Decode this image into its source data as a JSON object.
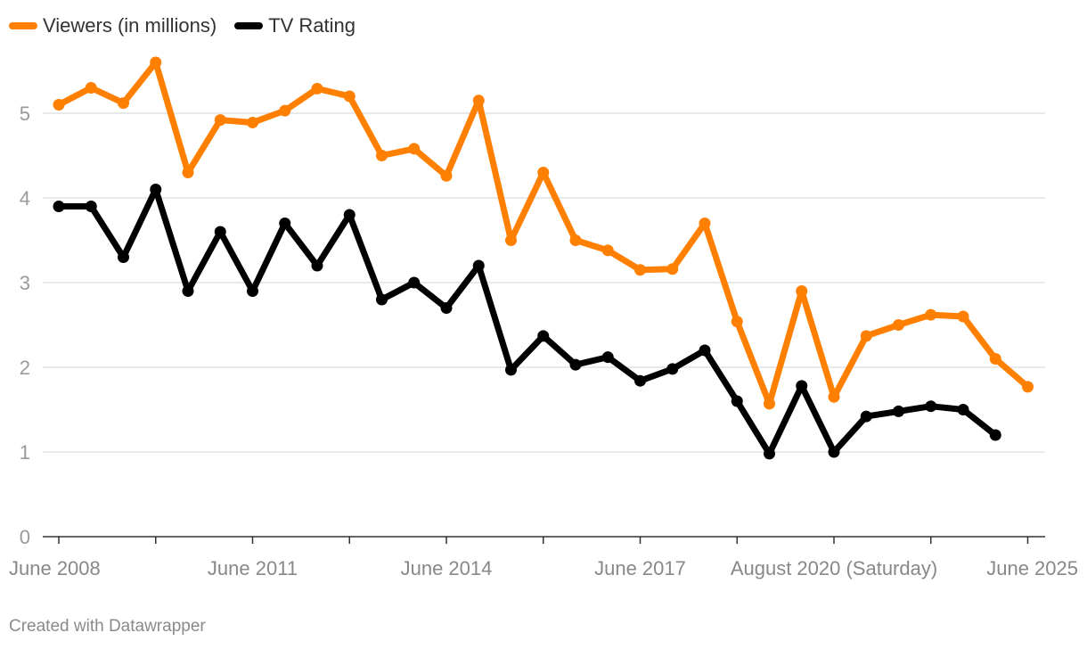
{
  "chart_data": {
    "type": "line",
    "title": "",
    "xlabel": "",
    "ylabel": "",
    "ylim": [
      0,
      5.8
    ],
    "yticks": [
      0,
      1,
      2,
      3,
      4,
      5
    ],
    "x_ticks": [
      0,
      3,
      6,
      9,
      12,
      15,
      18,
      21,
      24,
      27,
      30
    ],
    "x_tick_labels": [
      {
        "index": 0,
        "label": "June 2008"
      },
      {
        "index": 6,
        "label": "June 2011"
      },
      {
        "index": 12,
        "label": "June 2014"
      },
      {
        "index": 18,
        "label": "June 2017"
      },
      {
        "index": 24,
        "label": "August 2020 (Saturday)"
      },
      {
        "index": 30,
        "label": "June 2025"
      }
    ],
    "legend_position": "top-left",
    "series": [
      {
        "name": "Viewers (in millions)",
        "color": "#ff7f00",
        "values": [
          5.1,
          5.3,
          5.12,
          5.6,
          4.3,
          4.92,
          4.89,
          5.03,
          5.29,
          5.2,
          4.5,
          4.58,
          4.26,
          5.15,
          3.5,
          4.3,
          3.5,
          3.38,
          3.15,
          3.16,
          3.7,
          2.54,
          1.57,
          2.9,
          1.65,
          2.37,
          2.5,
          2.62,
          2.6,
          2.1,
          1.77
        ]
      },
      {
        "name": "TV Rating",
        "color": "#000000",
        "values": [
          3.9,
          3.9,
          3.3,
          4.1,
          2.9,
          3.6,
          2.9,
          3.7,
          3.2,
          3.8,
          2.8,
          3.0,
          2.7,
          3.2,
          1.97,
          2.37,
          2.03,
          2.12,
          1.84,
          1.98,
          2.2,
          1.6,
          0.98,
          1.78,
          1.0,
          1.42,
          1.48,
          1.54,
          1.5,
          1.2
        ]
      }
    ]
  },
  "footer": "Created with Datawrapper"
}
